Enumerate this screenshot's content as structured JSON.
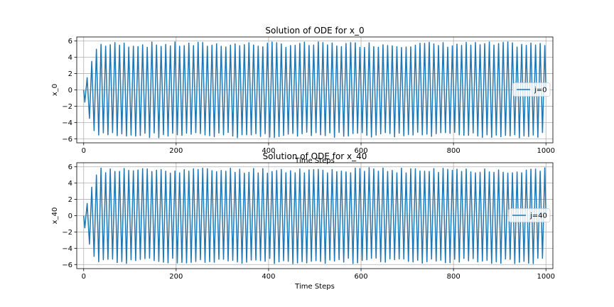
{
  "chart_data": [
    {
      "type": "line",
      "title": "Solution of ODE for x_0",
      "xlabel": "Time Steps",
      "ylabel": "x_0",
      "xlim": [
        -15,
        1015
      ],
      "ylim": [
        -6.5,
        6.5
      ],
      "xticks": [
        0,
        200,
        400,
        600,
        800,
        1000
      ],
      "yticks": [
        -6,
        -4,
        -2,
        0,
        2,
        4,
        6
      ],
      "grid": true,
      "legend_position": "center-right",
      "color": "#1f77b4",
      "series": [
        {
          "name": "j=0",
          "waveform": {
            "x_start": 0,
            "x_end": 1000,
            "num_cycles": 100,
            "initial_value": 0,
            "initial_amplitudes": [
              1.5,
              3.5,
              5.0
            ],
            "amplitude_range": [
              5.2,
              5.9
            ]
          }
        }
      ]
    },
    {
      "type": "line",
      "title": "Solution of ODE for x_40",
      "xlabel": "Time Steps",
      "ylabel": "x_40",
      "xlim": [
        -15,
        1015
      ],
      "ylim": [
        -6.5,
        6.5
      ],
      "xticks": [
        0,
        200,
        400,
        600,
        800,
        1000
      ],
      "yticks": [
        -6,
        -4,
        -2,
        0,
        2,
        4,
        6
      ],
      "grid": true,
      "legend_position": "center-right",
      "color": "#1f77b4",
      "series": [
        {
          "name": "j=40",
          "waveform": {
            "x_start": 0,
            "x_end": 1000,
            "num_cycles": 100,
            "initial_value": 0,
            "initial_amplitudes": [
              1.5,
              3.5,
              5.0
            ],
            "amplitude_range": [
              5.2,
              5.9
            ]
          }
        }
      ]
    }
  ]
}
